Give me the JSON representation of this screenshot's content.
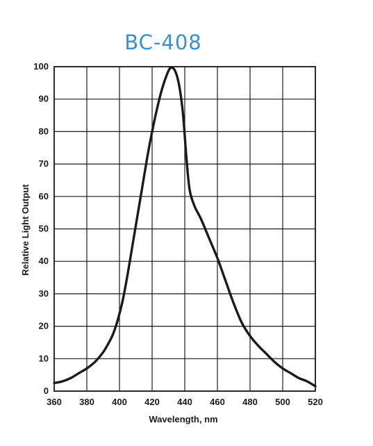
{
  "chart_data": {
    "type": "line",
    "title": "BC-408",
    "title_color": "#3a8fd0",
    "xlabel": "Wavelength, nm",
    "ylabel": "Relative Light Output",
    "xlim": [
      360,
      520
    ],
    "ylim": [
      0,
      100
    ],
    "x_ticks": [
      "360",
      "380",
      "400",
      "420",
      "440",
      "460",
      "480",
      "500",
      "520"
    ],
    "y_ticks": [
      "0",
      "10",
      "20",
      "30",
      "40",
      "50",
      "60",
      "70",
      "80",
      "90",
      "100"
    ],
    "grid": true,
    "series": [
      {
        "color": "#1a1a1a",
        "x": [
          360,
          365,
          370,
          375,
          380,
          385,
          390,
          393,
          396,
          399,
          402,
          405,
          408,
          411,
          414,
          417,
          420,
          423,
          426,
          429,
          431,
          433,
          435,
          437,
          439,
          441,
          443,
          446,
          450,
          455,
          460,
          465,
          470,
          475,
          480,
          485,
          490,
          495,
          500,
          505,
          510,
          515,
          520
        ],
        "y": [
          2.5,
          3.0,
          4.0,
          5.5,
          7.0,
          9.0,
          12.0,
          14.5,
          17.5,
          22.0,
          28.0,
          36.0,
          45.0,
          54.0,
          63.0,
          72.0,
          80.0,
          87.0,
          93.0,
          97.5,
          99.5,
          99.5,
          97.5,
          93.0,
          85.0,
          72.0,
          62.0,
          57.0,
          53.0,
          47.0,
          41.0,
          34.0,
          27.0,
          21.0,
          17.0,
          14.0,
          11.5,
          9.0,
          7.0,
          5.5,
          4.0,
          3.0,
          1.5
        ]
      }
    ]
  }
}
